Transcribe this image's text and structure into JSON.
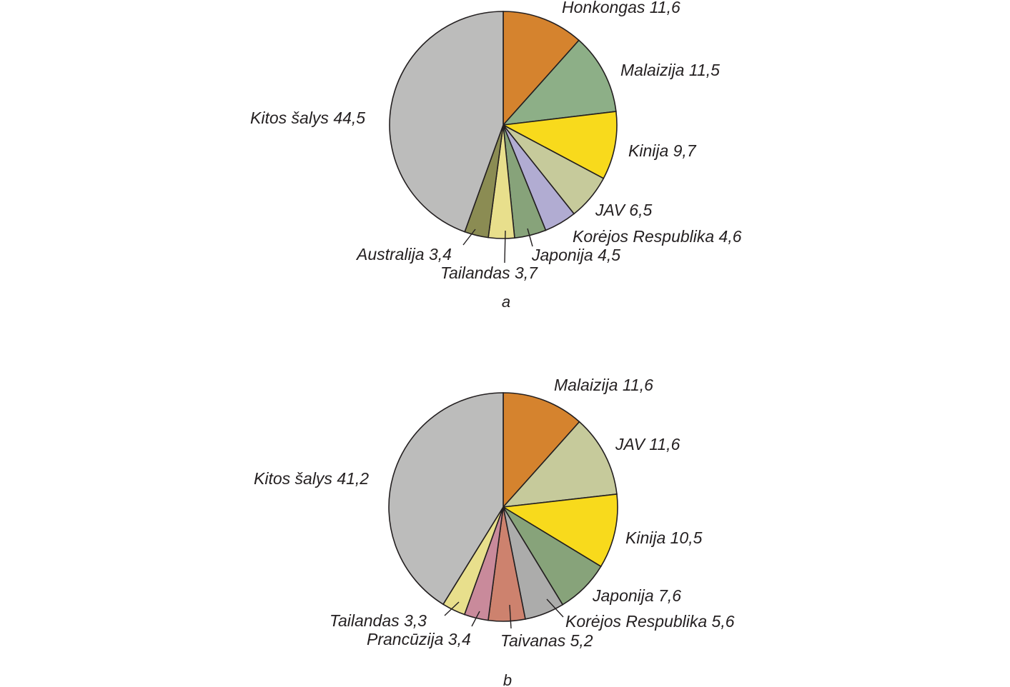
{
  "chart_data": [
    {
      "type": "pie",
      "caption": "a",
      "slices": [
        {
          "label": "Honkongas 11,6",
          "value": 11.6,
          "color": "#d5832e"
        },
        {
          "label": "Malaizija 11,5",
          "value": 11.5,
          "color": "#8daf87"
        },
        {
          "label": "Kinija 9,7",
          "value": 9.7,
          "color": "#f8da1c"
        },
        {
          "label": "JAV 6,5",
          "value": 6.5,
          "color": "#c6ca9b"
        },
        {
          "label": "Korėjos Respublika 4,6",
          "value": 4.6,
          "color": "#b1acd2"
        },
        {
          "label": "Japonija 4,5",
          "value": 4.5,
          "color": "#87a37a"
        },
        {
          "label": "Tailandas 3,7",
          "value": 3.7,
          "color": "#e8df8c"
        },
        {
          "label": "Australija 3,4",
          "value": 3.4,
          "color": "#8b8c53"
        },
        {
          "label": "Kitos šalys 44,5",
          "value": 44.5,
          "color": "#bcbcbb"
        }
      ]
    },
    {
      "type": "pie",
      "caption": "b",
      "slices": [
        {
          "label": "Malaizija 11,6",
          "value": 11.6,
          "color": "#d5832e"
        },
        {
          "label": "JAV 11,6",
          "value": 11.6,
          "color": "#c6ca9b"
        },
        {
          "label": "Kinija 10,5",
          "value": 10.5,
          "color": "#f8da1c"
        },
        {
          "label": "Japonija 7,6",
          "value": 7.6,
          "color": "#87a37a"
        },
        {
          "label": "Korėjos Respublika 5,6",
          "value": 5.6,
          "color": "#acacab"
        },
        {
          "label": "Taivanas 5,2",
          "value": 5.2,
          "color": "#cd826e"
        },
        {
          "label": "Prancūzija 3,4",
          "value": 3.4,
          "color": "#c98a9b"
        },
        {
          "label": "Tailandas 3,3",
          "value": 3.3,
          "color": "#e8df8c"
        },
        {
          "label": "Kitos šalys 41,2",
          "value": 41.2,
          "color": "#bcbcbb"
        }
      ]
    }
  ]
}
